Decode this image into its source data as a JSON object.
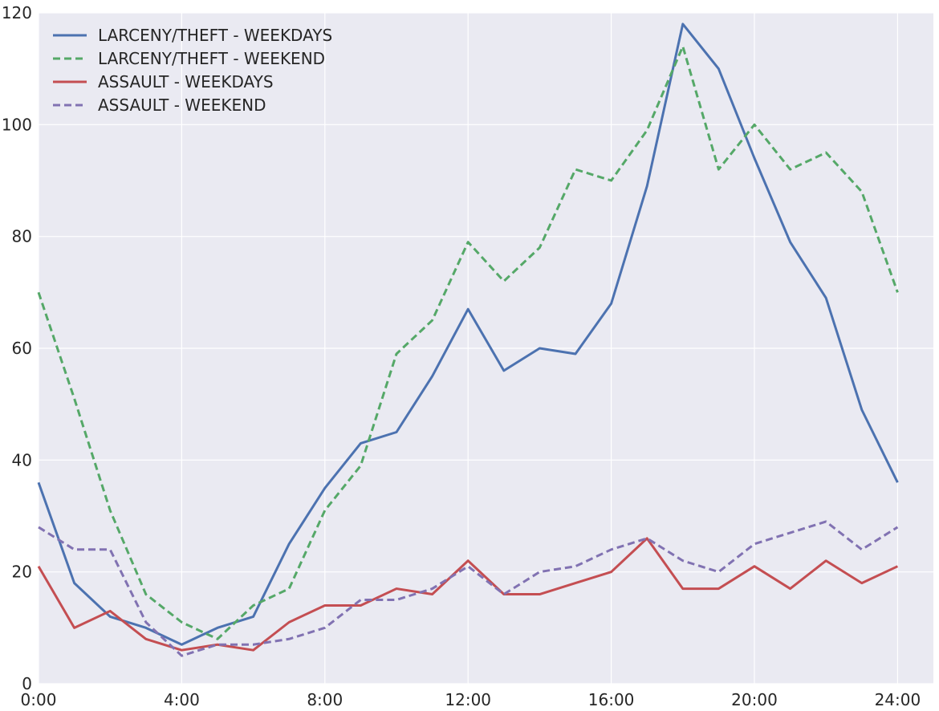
{
  "chart_data": {
    "type": "line",
    "title": "",
    "xlabel": "",
    "ylabel": "",
    "x": [
      0,
      1,
      2,
      3,
      4,
      5,
      6,
      7,
      8,
      9,
      10,
      11,
      12,
      13,
      14,
      15,
      16,
      17,
      18,
      19,
      20,
      21,
      22,
      23,
      24
    ],
    "x_ticks": [
      {
        "value": 0,
        "label": "0:00"
      },
      {
        "value": 4,
        "label": "4:00"
      },
      {
        "value": 8,
        "label": "8:00"
      },
      {
        "value": 12,
        "label": "12:00"
      },
      {
        "value": 16,
        "label": "16:00"
      },
      {
        "value": 20,
        "label": "20:00"
      },
      {
        "value": 24,
        "label": "24:00"
      }
    ],
    "y_ticks": [
      {
        "value": 0,
        "label": "0"
      },
      {
        "value": 20,
        "label": "20"
      },
      {
        "value": 40,
        "label": "40"
      },
      {
        "value": 60,
        "label": "60"
      },
      {
        "value": 80,
        "label": "80"
      },
      {
        "value": 100,
        "label": "100"
      },
      {
        "value": 120,
        "label": "120"
      }
    ],
    "xlim": [
      0,
      25
    ],
    "ylim": [
      0,
      120
    ],
    "grid": true,
    "legend_position": "top-left",
    "series": [
      {
        "name": "LARCENY/THEFT - WEEKDAYS",
        "color": "#4c72b0",
        "dashed": false,
        "values": [
          36,
          18,
          12,
          10,
          7,
          10,
          12,
          25,
          35,
          43,
          45,
          55,
          67,
          56,
          60,
          59,
          68,
          89,
          118,
          110,
          94,
          79,
          69,
          49,
          36
        ]
      },
      {
        "name": "LARCENY/THEFT - WEEKEND",
        "color": "#55a868",
        "dashed": true,
        "values": [
          70,
          51,
          31,
          16,
          11,
          8,
          14,
          17,
          31,
          39,
          59,
          65,
          79,
          72,
          78,
          92,
          90,
          99,
          114,
          92,
          100,
          92,
          95,
          88,
          70
        ]
      },
      {
        "name": "ASSAULT - WEEKDAYS",
        "color": "#c44e52",
        "dashed": false,
        "values": [
          21,
          10,
          13,
          8,
          6,
          7,
          6,
          11,
          14,
          14,
          17,
          16,
          22,
          16,
          16,
          18,
          20,
          26,
          17,
          17,
          21,
          17,
          22,
          18,
          21
        ]
      },
      {
        "name": "ASSAULT - WEEKEND",
        "color": "#8172b2",
        "dashed": true,
        "values": [
          28,
          24,
          24,
          11,
          5,
          7,
          7,
          8,
          10,
          15,
          15,
          17,
          21,
          16,
          20,
          21,
          24,
          26,
          22,
          20,
          25,
          27,
          29,
          24,
          28
        ]
      }
    ]
  }
}
